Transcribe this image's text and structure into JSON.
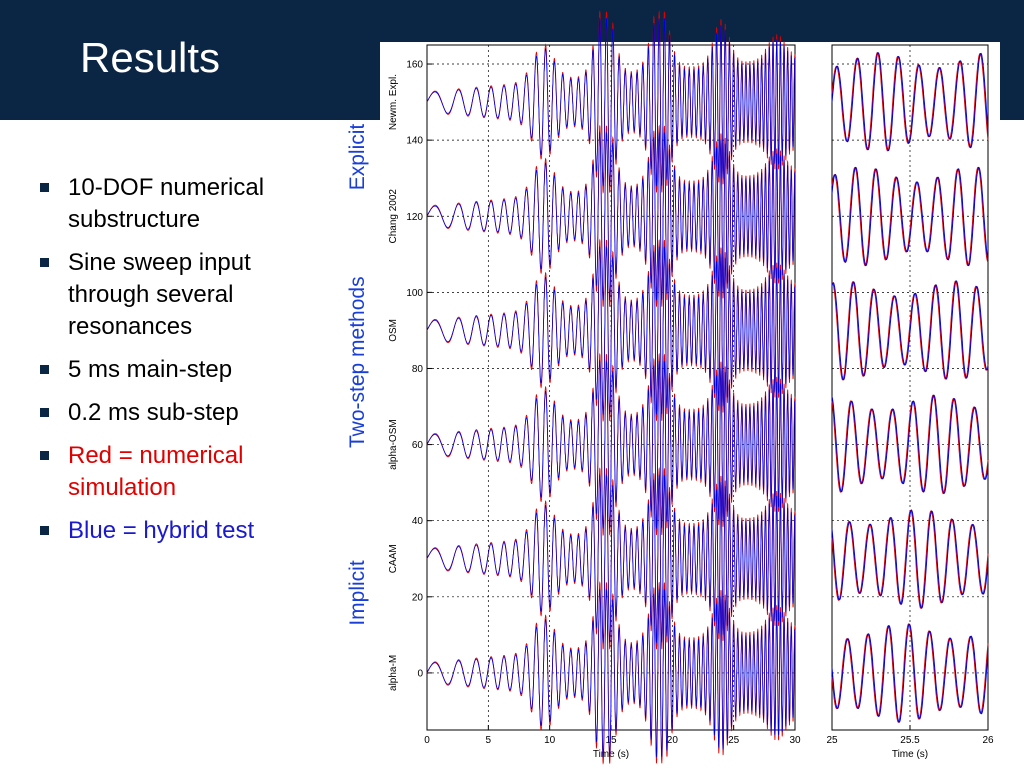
{
  "slide": {
    "title": "Results",
    "bullets": [
      {
        "text": "10-DOF numerical substructure",
        "color": "#000000"
      },
      {
        "text": "Sine sweep input through several resonances",
        "color": "#000000"
      },
      {
        "text": "5 ms main-step",
        "color": "#000000"
      },
      {
        "text": "0.2 ms sub-step",
        "color": "#000000"
      },
      {
        "text": "Red = numerical simulation",
        "color": "#e00000"
      },
      {
        "text": "Blue = hybrid test",
        "color": "#1a1acc"
      }
    ],
    "group_labels": {
      "explicit": "Explicit",
      "two_step": "Two-step methods",
      "implicit": "Implicit"
    }
  },
  "colors": {
    "header": "#0b2545",
    "accent_label": "#1a3fd6",
    "numerical": "#e00000",
    "hybrid": "#0000dd"
  },
  "chart_data": [
    {
      "type": "line",
      "panel": "full-record",
      "xlabel": "Time (s)",
      "ylabel": "",
      "xlim": [
        0,
        30
      ],
      "ylim": [
        -15,
        165
      ],
      "xticks": [
        0,
        5,
        10,
        15,
        20,
        25,
        30
      ],
      "yticks": [
        0,
        20,
        40,
        60,
        80,
        100,
        120,
        140,
        160
      ],
      "grid": true,
      "trace_labels": [
        "Newm. Expl.",
        "Chang 2002",
        "OSM",
        "alpha-OSM",
        "CAAM",
        "alpha-M"
      ],
      "trace_offsets": [
        150,
        120,
        90,
        60,
        30,
        0
      ],
      "series": [
        {
          "name": "Red = numerical simulation",
          "color": "#e00000"
        },
        {
          "name": "Blue = hybrid test",
          "color": "#0000dd"
        }
      ],
      "signal": "sine sweep response",
      "response_peaks_x": [
        9.5,
        14.5,
        19,
        24,
        28.5
      ]
    },
    {
      "type": "line",
      "panel": "zoom",
      "xlabel": "Time (s)",
      "xlim": [
        25,
        26
      ],
      "xticks": [
        25,
        25.5,
        26
      ],
      "ylim": [
        -15,
        165
      ],
      "grid": true,
      "trace_offsets": [
        150,
        120,
        90,
        60,
        30,
        0
      ],
      "series": [
        {
          "name": "Red = numerical simulation",
          "color": "#e00000"
        },
        {
          "name": "Blue = hybrid test",
          "color": "#0000dd"
        }
      ]
    }
  ]
}
